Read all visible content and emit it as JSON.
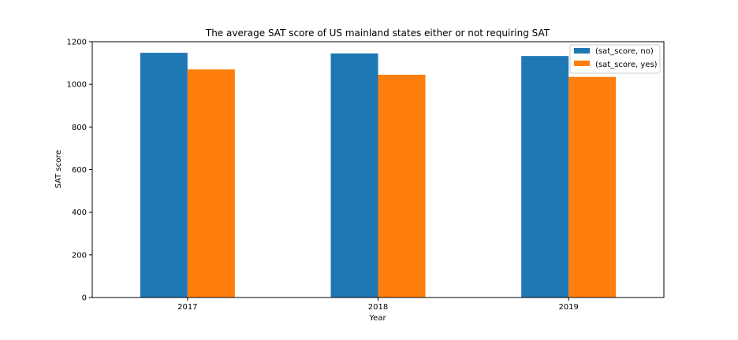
{
  "chart_data": {
    "type": "bar",
    "title": "The average SAT score of US mainland states either or not requiring SAT",
    "xlabel": "Year",
    "ylabel": "SAT score",
    "categories": [
      "2017",
      "2018",
      "2019"
    ],
    "series": [
      {
        "name": "(sat_score, no)",
        "values": [
          1148,
          1145,
          1133
        ],
        "color": "#1f77b4"
      },
      {
        "name": "(sat_score, yes)",
        "values": [
          1070,
          1045,
          1035
        ],
        "color": "#ff7f0e"
      }
    ],
    "ylim": [
      0,
      1200
    ],
    "yticks": [
      0,
      200,
      400,
      600,
      800,
      1000,
      1200
    ],
    "grid": false,
    "legend_position": "top-right"
  }
}
